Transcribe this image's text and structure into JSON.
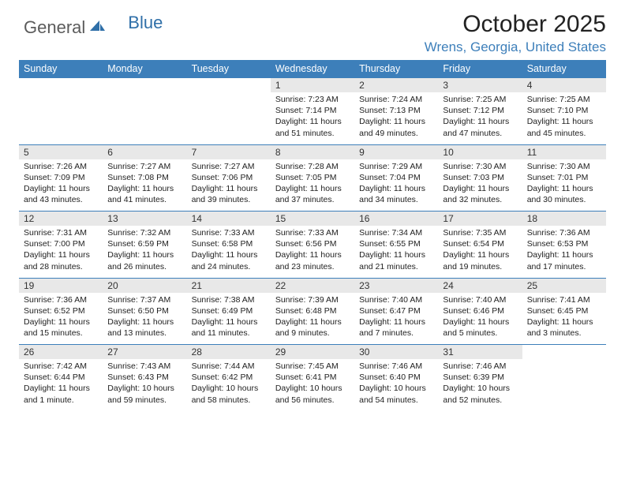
{
  "logo": {
    "text1": "General",
    "text2": "Blue"
  },
  "title": "October 2025",
  "location": "Wrens, Georgia, United States",
  "day_headers": [
    "Sunday",
    "Monday",
    "Tuesday",
    "Wednesday",
    "Thursday",
    "Friday",
    "Saturday"
  ],
  "colors": {
    "header_bg": "#3d7fba",
    "header_text": "#ffffff",
    "daynum_bg": "#e8e8e8",
    "border": "#3d7fba",
    "logo_gray": "#5b5b5b",
    "logo_blue": "#2f6fa8",
    "location_text": "#3d7fba",
    "body_text": "#222222"
  },
  "layout": {
    "columns": 7,
    "rows": 5,
    "leading_blanks": 3,
    "days_in_month": 31
  },
  "days": {
    "1": {
      "sunrise": "7:23 AM",
      "sunset": "7:14 PM",
      "daylight": "11 hours and 51 minutes."
    },
    "2": {
      "sunrise": "7:24 AM",
      "sunset": "7:13 PM",
      "daylight": "11 hours and 49 minutes."
    },
    "3": {
      "sunrise": "7:25 AM",
      "sunset": "7:12 PM",
      "daylight": "11 hours and 47 minutes."
    },
    "4": {
      "sunrise": "7:25 AM",
      "sunset": "7:10 PM",
      "daylight": "11 hours and 45 minutes."
    },
    "5": {
      "sunrise": "7:26 AM",
      "sunset": "7:09 PM",
      "daylight": "11 hours and 43 minutes."
    },
    "6": {
      "sunrise": "7:27 AM",
      "sunset": "7:08 PM",
      "daylight": "11 hours and 41 minutes."
    },
    "7": {
      "sunrise": "7:27 AM",
      "sunset": "7:06 PM",
      "daylight": "11 hours and 39 minutes."
    },
    "8": {
      "sunrise": "7:28 AM",
      "sunset": "7:05 PM",
      "daylight": "11 hours and 37 minutes."
    },
    "9": {
      "sunrise": "7:29 AM",
      "sunset": "7:04 PM",
      "daylight": "11 hours and 34 minutes."
    },
    "10": {
      "sunrise": "7:30 AM",
      "sunset": "7:03 PM",
      "daylight": "11 hours and 32 minutes."
    },
    "11": {
      "sunrise": "7:30 AM",
      "sunset": "7:01 PM",
      "daylight": "11 hours and 30 minutes."
    },
    "12": {
      "sunrise": "7:31 AM",
      "sunset": "7:00 PM",
      "daylight": "11 hours and 28 minutes."
    },
    "13": {
      "sunrise": "7:32 AM",
      "sunset": "6:59 PM",
      "daylight": "11 hours and 26 minutes."
    },
    "14": {
      "sunrise": "7:33 AM",
      "sunset": "6:58 PM",
      "daylight": "11 hours and 24 minutes."
    },
    "15": {
      "sunrise": "7:33 AM",
      "sunset": "6:56 PM",
      "daylight": "11 hours and 23 minutes."
    },
    "16": {
      "sunrise": "7:34 AM",
      "sunset": "6:55 PM",
      "daylight": "11 hours and 21 minutes."
    },
    "17": {
      "sunrise": "7:35 AM",
      "sunset": "6:54 PM",
      "daylight": "11 hours and 19 minutes."
    },
    "18": {
      "sunrise": "7:36 AM",
      "sunset": "6:53 PM",
      "daylight": "11 hours and 17 minutes."
    },
    "19": {
      "sunrise": "7:36 AM",
      "sunset": "6:52 PM",
      "daylight": "11 hours and 15 minutes."
    },
    "20": {
      "sunrise": "7:37 AM",
      "sunset": "6:50 PM",
      "daylight": "11 hours and 13 minutes."
    },
    "21": {
      "sunrise": "7:38 AM",
      "sunset": "6:49 PM",
      "daylight": "11 hours and 11 minutes."
    },
    "22": {
      "sunrise": "7:39 AM",
      "sunset": "6:48 PM",
      "daylight": "11 hours and 9 minutes."
    },
    "23": {
      "sunrise": "7:40 AM",
      "sunset": "6:47 PM",
      "daylight": "11 hours and 7 minutes."
    },
    "24": {
      "sunrise": "7:40 AM",
      "sunset": "6:46 PM",
      "daylight": "11 hours and 5 minutes."
    },
    "25": {
      "sunrise": "7:41 AM",
      "sunset": "6:45 PM",
      "daylight": "11 hours and 3 minutes."
    },
    "26": {
      "sunrise": "7:42 AM",
      "sunset": "6:44 PM",
      "daylight": "11 hours and 1 minute."
    },
    "27": {
      "sunrise": "7:43 AM",
      "sunset": "6:43 PM",
      "daylight": "10 hours and 59 minutes."
    },
    "28": {
      "sunrise": "7:44 AM",
      "sunset": "6:42 PM",
      "daylight": "10 hours and 58 minutes."
    },
    "29": {
      "sunrise": "7:45 AM",
      "sunset": "6:41 PM",
      "daylight": "10 hours and 56 minutes."
    },
    "30": {
      "sunrise": "7:46 AM",
      "sunset": "6:40 PM",
      "daylight": "10 hours and 54 minutes."
    },
    "31": {
      "sunrise": "7:46 AM",
      "sunset": "6:39 PM",
      "daylight": "10 hours and 52 minutes."
    }
  },
  "labels": {
    "sunrise": "Sunrise: ",
    "sunset": "Sunset: ",
    "daylight": "Daylight: "
  }
}
